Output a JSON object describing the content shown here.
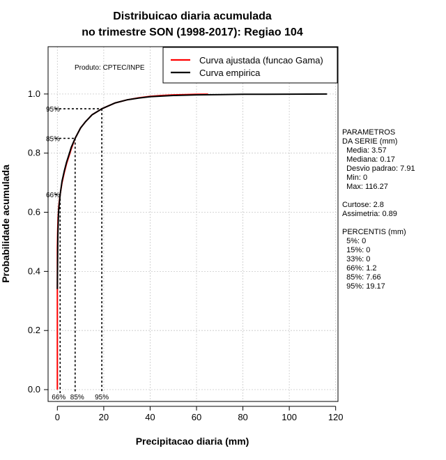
{
  "chart_data": {
    "type": "line",
    "title": [
      "Distribuicao diaria acumulada",
      "no trimestre SON (1998-2017): Regiao 104"
    ],
    "xlabel": "Precipitacao diaria (mm)",
    "ylabel": "Probabilidade acumulada",
    "xlim": [
      -4,
      121
    ],
    "ylim": [
      -0.04,
      1.16
    ],
    "xticks": [
      0,
      20,
      40,
      60,
      80,
      100,
      120
    ],
    "yticks": [
      0.0,
      0.2,
      0.4,
      0.6,
      0.8,
      1.0
    ],
    "xtick_labels": [
      "0",
      "20",
      "40",
      "60",
      "80",
      "100",
      "120"
    ],
    "ytick_labels": [
      "0.0",
      "0.2",
      "0.4",
      "0.6",
      "0.8",
      "1.0"
    ],
    "grid": true,
    "legend_position": "top-right",
    "product_label": "Produto: CPTEC/INPE",
    "series": [
      {
        "name": "Curva ajustada (funcao Gama)",
        "color": "#ff0000",
        "x": [
          0,
          0,
          0.15,
          0.3,
          0.6,
          1.2,
          2,
          3,
          4,
          5,
          6,
          7.66,
          10,
          12,
          15,
          19.17,
          25,
          30,
          35,
          40,
          45,
          50,
          55,
          60,
          65
        ],
        "y": [
          0.0,
          0.48,
          0.54,
          0.58,
          0.62,
          0.66,
          0.7,
          0.735,
          0.765,
          0.79,
          0.815,
          0.85,
          0.885,
          0.905,
          0.93,
          0.95,
          0.97,
          0.98,
          0.987,
          0.992,
          0.995,
          0.997,
          0.998,
          0.999,
          0.9995
        ]
      },
      {
        "name": "Curva empirica",
        "color": "#000000",
        "x": [
          0,
          0.2,
          0.5,
          1.2,
          2,
          3,
          4,
          5,
          6,
          7.66,
          10,
          12,
          15,
          19.17,
          25,
          30,
          35,
          40,
          50,
          60,
          70,
          80,
          100,
          116.27
        ],
        "y": [
          0.34,
          0.52,
          0.6,
          0.66,
          0.705,
          0.74,
          0.77,
          0.795,
          0.82,
          0.85,
          0.885,
          0.905,
          0.93,
          0.95,
          0.97,
          0.98,
          0.986,
          0.991,
          0.995,
          0.997,
          0.998,
          0.999,
          0.9995,
          1.0
        ]
      }
    ],
    "percentile_markers": [
      {
        "p": 0.66,
        "x": 1.2,
        "left_label": "66%",
        "bottom_label": "66%"
      },
      {
        "p": 0.85,
        "x": 7.66,
        "left_label": "85%",
        "bottom_label": "85%"
      },
      {
        "p": 0.95,
        "x": 19.17,
        "left_label": "95%",
        "bottom_label": "95%"
      }
    ],
    "side_panel": [
      "PARAMETROS",
      "DA SERIE (mm)",
      "  Media: 3.57",
      "  Mediana: 0.17",
      "  Desvio padrao: 7.91",
      "  Min: 0",
      "  Max: 116.27",
      "",
      "Curtose: 2.8",
      "Assimetria: 0.89",
      "",
      "PERCENTIS (mm)",
      "  5%: 0",
      "  15%: 0",
      "  33%: 0",
      "  66%: 1.2",
      "  85%: 7.66",
      "  95%: 19.17"
    ]
  }
}
